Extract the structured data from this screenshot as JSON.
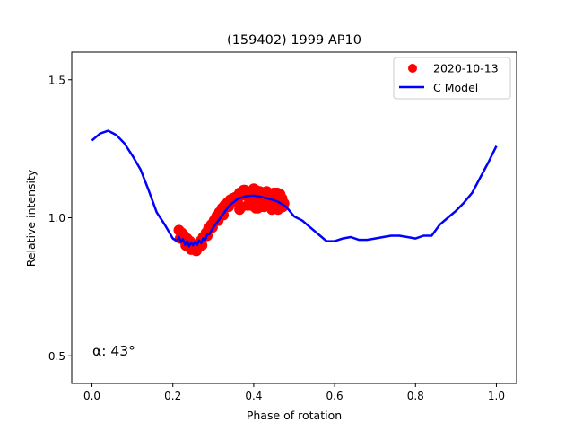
{
  "chart_data": {
    "type": "scatter",
    "title": "(159402) 1999 AP10",
    "xlabel": "Phase of rotation",
    "ylabel": "Relative intensity",
    "xlim": [
      -0.05,
      1.05
    ],
    "ylim": [
      0.4,
      1.6
    ],
    "xticks": [
      0.0,
      0.2,
      0.4,
      0.6,
      0.8,
      1.0
    ],
    "xtick_labels": [
      "0.0",
      "0.2",
      "0.4",
      "0.6",
      "0.8",
      "1.0"
    ],
    "yticks": [
      0.5,
      1.0,
      1.5
    ],
    "ytick_labels": [
      "0.5",
      "1.0",
      "1.5"
    ],
    "grid": false,
    "legend_position": "top-right",
    "annotation": "α: 43°",
    "colors": {
      "observations": "#ff0000",
      "model": "#0000ff"
    },
    "series": [
      {
        "name": "2020-10-13",
        "kind": "points",
        "x": [
          0.215,
          0.222,
          0.228,
          0.235,
          0.242,
          0.248,
          0.255,
          0.262,
          0.268,
          0.275,
          0.282,
          0.288,
          0.295,
          0.302,
          0.308,
          0.315,
          0.322,
          0.328,
          0.335,
          0.342,
          0.348,
          0.355,
          0.362,
          0.368,
          0.375,
          0.382,
          0.388,
          0.395,
          0.402,
          0.408,
          0.415,
          0.422,
          0.428,
          0.435,
          0.442,
          0.448,
          0.455,
          0.462,
          0.468,
          0.475,
          0.218,
          0.232,
          0.245,
          0.258,
          0.272,
          0.285,
          0.298,
          0.312,
          0.325,
          0.338,
          0.352,
          0.365,
          0.378,
          0.392,
          0.405,
          0.418,
          0.432,
          0.445,
          0.458,
          0.472,
          0.36,
          0.37,
          0.38,
          0.39,
          0.4,
          0.41,
          0.42,
          0.43,
          0.44,
          0.45,
          0.46,
          0.47,
          0.365,
          0.385,
          0.405,
          0.425,
          0.445,
          0.465,
          0.375,
          0.415,
          0.455
        ],
        "y": [
          0.955,
          0.945,
          0.935,
          0.925,
          0.915,
          0.9,
          0.895,
          0.905,
          0.915,
          0.93,
          0.945,
          0.96,
          0.975,
          0.99,
          1.005,
          1.02,
          1.035,
          1.045,
          1.055,
          1.065,
          1.07,
          1.075,
          1.08,
          1.08,
          1.082,
          1.08,
          1.078,
          1.076,
          1.074,
          1.072,
          1.07,
          1.068,
          1.065,
          1.062,
          1.06,
          1.058,
          1.056,
          1.055,
          1.054,
          1.052,
          0.925,
          0.9,
          0.885,
          0.88,
          0.9,
          0.935,
          0.965,
          0.99,
          1.01,
          1.04,
          1.06,
          1.09,
          1.1,
          1.045,
          1.1,
          1.05,
          1.095,
          1.035,
          1.09,
          1.04,
          1.065,
          1.04,
          1.095,
          1.06,
          1.105,
          1.035,
          1.085,
          1.045,
          1.075,
          1.09,
          1.03,
          1.07,
          1.03,
          1.045,
          1.035,
          1.04,
          1.03,
          1.085,
          1.1,
          1.095,
          1.06
        ]
      },
      {
        "name": "C Model",
        "kind": "line",
        "x": [
          0.0,
          0.02,
          0.04,
          0.06,
          0.08,
          0.1,
          0.12,
          0.14,
          0.16,
          0.18,
          0.2,
          0.21,
          0.215,
          0.22,
          0.225,
          0.23,
          0.235,
          0.24,
          0.245,
          0.25,
          0.255,
          0.26,
          0.265,
          0.27,
          0.275,
          0.28,
          0.285,
          0.29,
          0.3,
          0.32,
          0.34,
          0.36,
          0.38,
          0.4,
          0.42,
          0.44,
          0.46,
          0.48,
          0.5,
          0.52,
          0.54,
          0.56,
          0.58,
          0.6,
          0.62,
          0.64,
          0.66,
          0.68,
          0.7,
          0.72,
          0.74,
          0.76,
          0.78,
          0.8,
          0.82,
          0.84,
          0.86,
          0.88,
          0.9,
          0.92,
          0.94,
          0.96,
          0.98,
          1.0
        ],
        "y": [
          1.28,
          1.305,
          1.315,
          1.3,
          1.27,
          1.225,
          1.175,
          1.1,
          1.02,
          0.975,
          0.925,
          0.915,
          0.93,
          0.912,
          0.922,
          0.902,
          0.915,
          0.897,
          0.91,
          0.9,
          0.912,
          0.902,
          0.918,
          0.908,
          0.926,
          0.92,
          0.94,
          0.94,
          0.965,
          1.005,
          1.045,
          1.068,
          1.078,
          1.08,
          1.075,
          1.068,
          1.058,
          1.04,
          1.005,
          0.99,
          0.965,
          0.94,
          0.915,
          0.915,
          0.925,
          0.93,
          0.92,
          0.92,
          0.925,
          0.93,
          0.935,
          0.935,
          0.93,
          0.925,
          0.935,
          0.935,
          0.975,
          1.0,
          1.025,
          1.055,
          1.09,
          1.145,
          1.2,
          1.26
        ]
      }
    ]
  }
}
